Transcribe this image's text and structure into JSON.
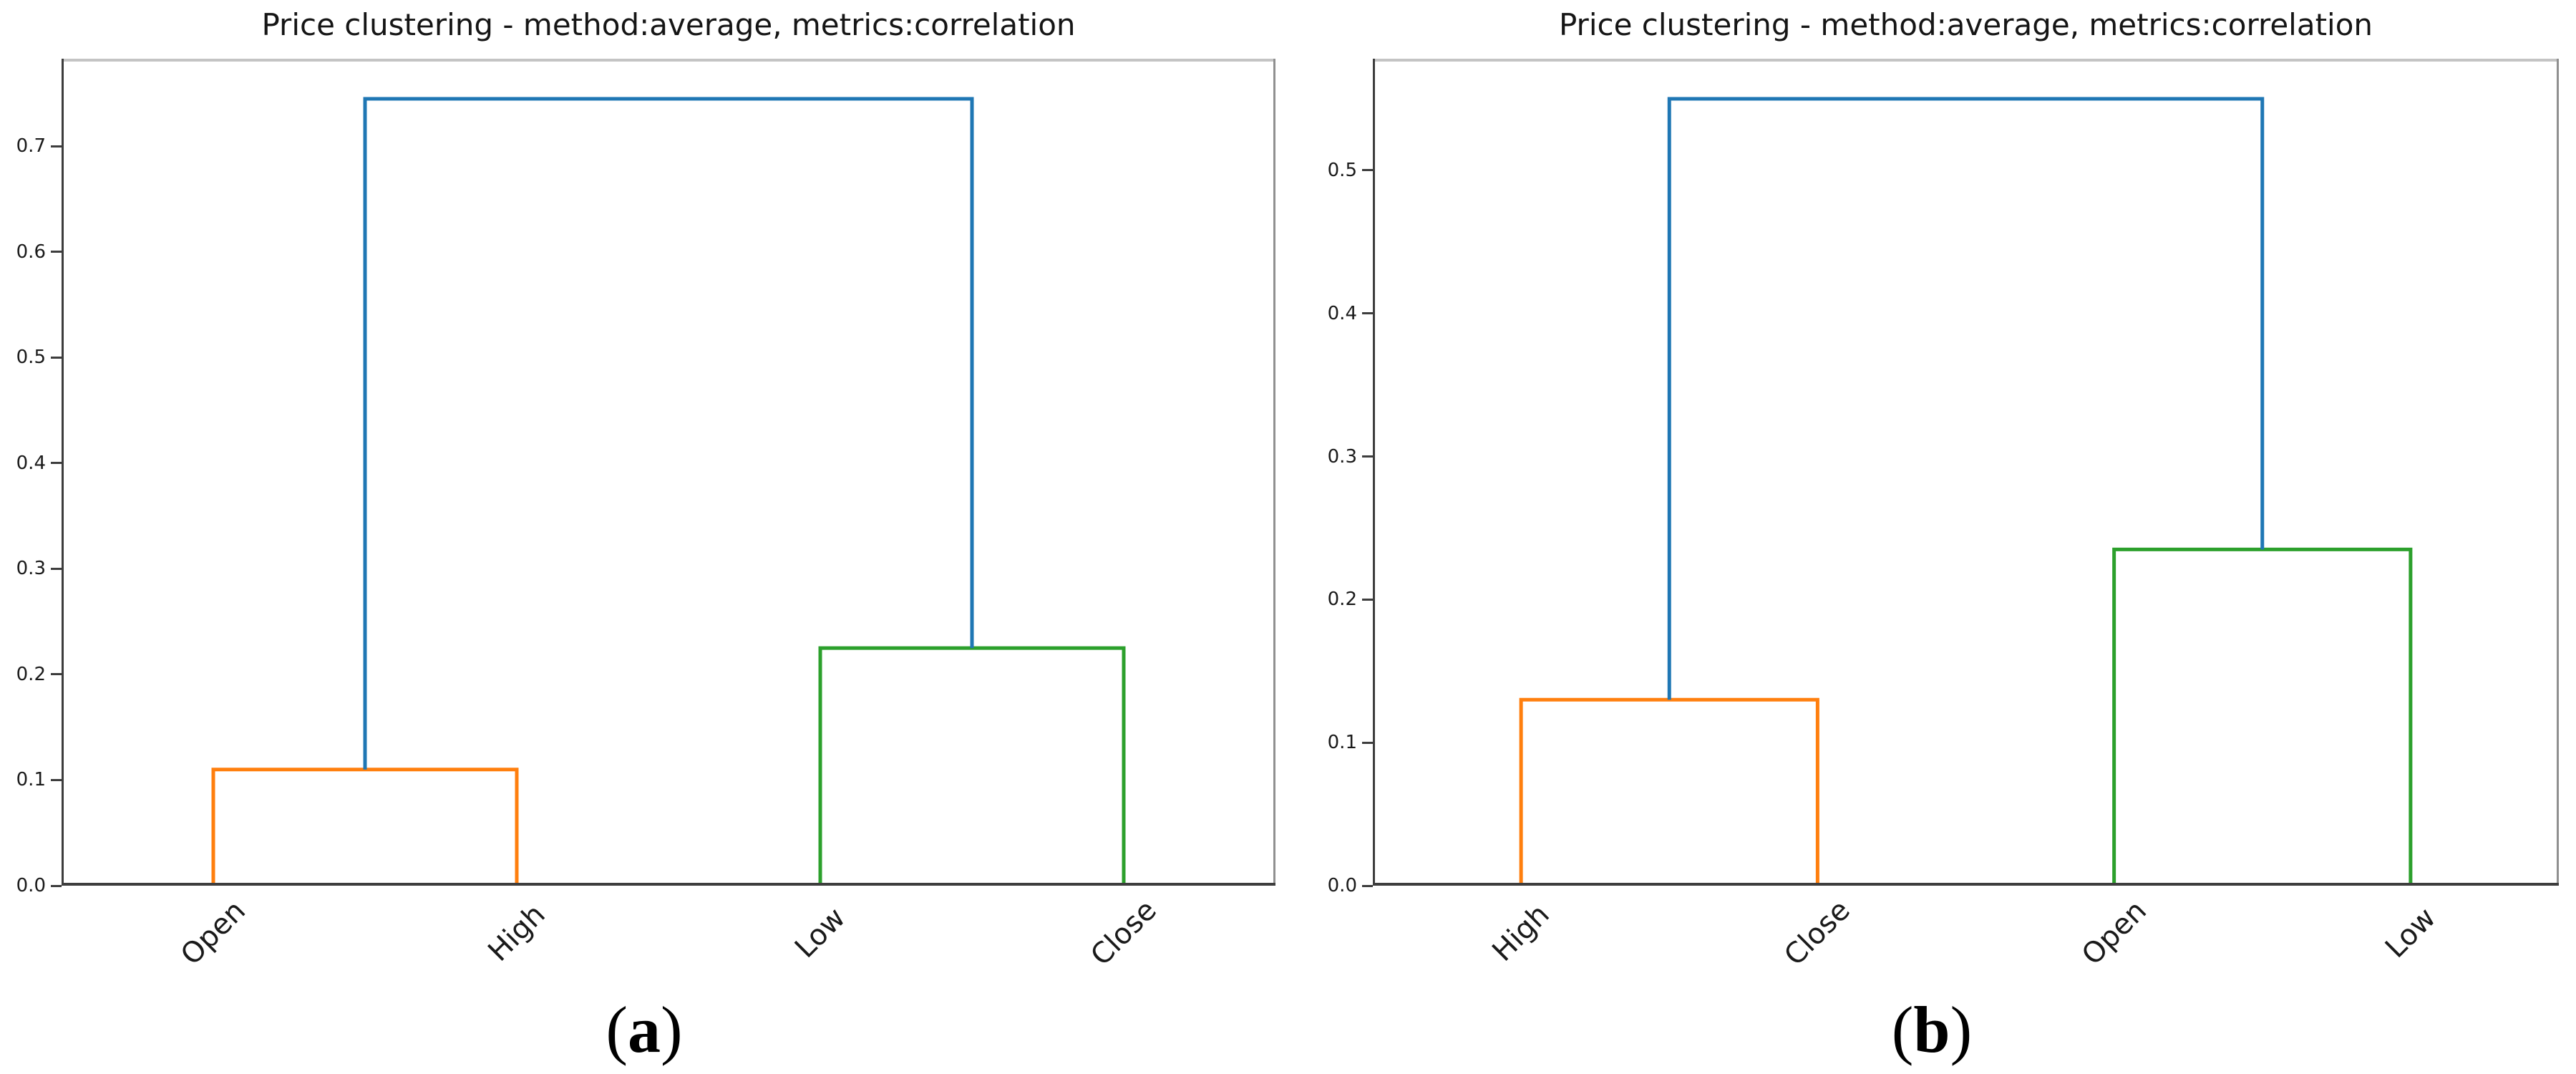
{
  "chart_data": [
    {
      "type": "dendrogram",
      "panel_label": "a",
      "caption": {
        "open": "(",
        "letter": "a",
        "close": ")"
      },
      "title": "Price clustering - method:average, metrics:correlation",
      "leaves": [
        "Open",
        "High",
        "Low",
        "Close"
      ],
      "merges": [
        {
          "children": [
            "leaf:0",
            "leaf:1"
          ],
          "height": 0.11,
          "color": "#ff7f0e"
        },
        {
          "children": [
            "leaf:2",
            "leaf:3"
          ],
          "height": 0.225,
          "color": "#2ca02c"
        },
        {
          "children": [
            "merge:0",
            "merge:1"
          ],
          "height": 0.745,
          "color": "#1f77b4"
        }
      ],
      "ylim": [
        0,
        0.783
      ],
      "yticks": [
        0.0,
        0.1,
        0.2,
        0.3,
        0.4,
        0.5,
        0.6,
        0.7
      ],
      "ytick_labels": [
        "0.0",
        "0.1",
        "0.2",
        "0.3",
        "0.4",
        "0.5",
        "0.6",
        "0.7"
      ],
      "xlabel": "",
      "ylabel": "",
      "grid": false,
      "legend_position": null
    },
    {
      "type": "dendrogram",
      "panel_label": "b",
      "caption": {
        "open": "(",
        "letter": "b",
        "close": ")"
      },
      "title": "Price clustering - method:average, metrics:correlation",
      "leaves": [
        "High",
        "Close",
        "Open",
        "Low"
      ],
      "merges": [
        {
          "children": [
            "leaf:0",
            "leaf:1"
          ],
          "height": 0.13,
          "color": "#ff7f0e"
        },
        {
          "children": [
            "leaf:2",
            "leaf:3"
          ],
          "height": 0.235,
          "color": "#2ca02c"
        },
        {
          "children": [
            "merge:0",
            "merge:1"
          ],
          "height": 0.55,
          "color": "#1f77b4"
        }
      ],
      "ylim": [
        0,
        0.578
      ],
      "yticks": [
        0.0,
        0.1,
        0.2,
        0.3,
        0.4,
        0.5
      ],
      "ytick_labels": [
        "0.0",
        "0.1",
        "0.2",
        "0.3",
        "0.4",
        "0.5"
      ],
      "xlabel": "",
      "ylabel": "",
      "grid": false,
      "legend_position": null
    }
  ]
}
